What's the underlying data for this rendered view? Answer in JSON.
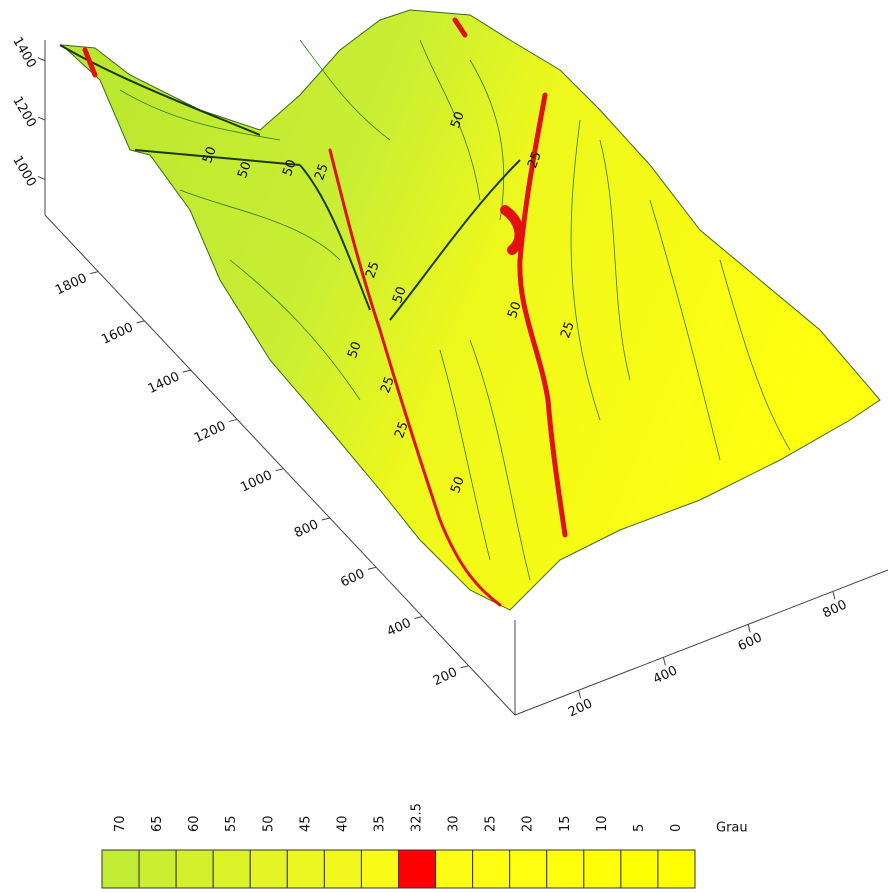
{
  "chart_data": {
    "type": "surface3d",
    "xticks": [
      200,
      400,
      600,
      800
    ],
    "xlim": [
      50,
      930
    ],
    "yticks": [
      200,
      400,
      600,
      800,
      1000,
      1200,
      1400,
      1600,
      1800
    ],
    "ylim": [
      0,
      2030
    ],
    "zticks": [
      1000,
      1200,
      1400
    ],
    "zlim": [
      880,
      1470
    ],
    "contour_labels": [
      50,
      25,
      50,
      50,
      50,
      25,
      25,
      50,
      50,
      25,
      50,
      25,
      25,
      50
    ],
    "colorbar": {
      "label": "Grau",
      "levels": [
        70,
        65,
        60,
        55,
        50,
        45,
        40,
        35,
        32.5,
        30,
        25,
        20,
        15,
        10,
        5,
        0
      ],
      "colors": [
        "#c2ec34",
        "#ccee30",
        "#d4f02c",
        "#dcf228",
        "#e4f424",
        "#ecf620",
        "#f2f81c",
        "#f8fa18",
        "#ff0000",
        "#fdfc14",
        "#fefd12",
        "#ffff10",
        "#ffff0c",
        "#ffff08",
        "#ffff04",
        "#ffff00"
      ]
    }
  }
}
